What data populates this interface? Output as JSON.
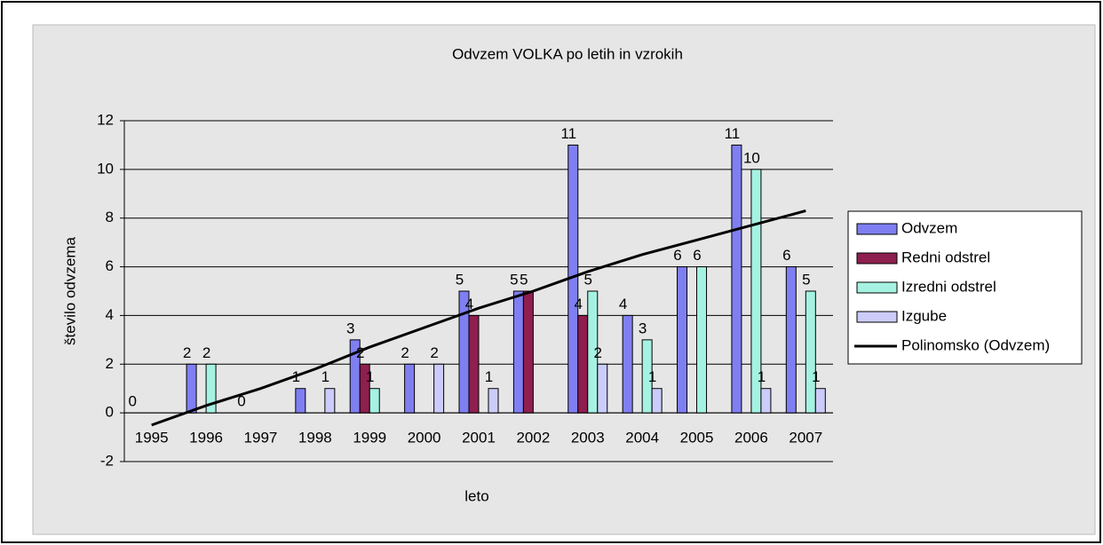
{
  "chart_data": {
    "type": "bar",
    "title": "Odvzem VOLKA po letih in vzrokih",
    "x_label": "leto",
    "y_label": "število odvzema",
    "categories": [
      "1995",
      "1996",
      "1997",
      "1998",
      "1999",
      "2000",
      "2001",
      "2002",
      "2003",
      "2004",
      "2005",
      "2006",
      "2007"
    ],
    "series": [
      {
        "name": "Odvzem",
        "color": "#7f7ff2",
        "values": [
          0,
          2,
          0,
          1,
          3,
          2,
          5,
          5,
          11,
          4,
          6,
          11,
          6
        ]
      },
      {
        "name": "Redni odstrel",
        "color": "#8e1f4f",
        "values": [
          null,
          null,
          null,
          null,
          2,
          null,
          4,
          5,
          4,
          null,
          null,
          null,
          null
        ]
      },
      {
        "name": "Izredni odstrel",
        "color": "#a6f2e2",
        "values": [
          null,
          2,
          null,
          null,
          1,
          null,
          null,
          null,
          5,
          3,
          6,
          10,
          5
        ]
      },
      {
        "name": "Izgube",
        "color": "#ccccfa",
        "values": [
          null,
          null,
          null,
          1,
          null,
          2,
          1,
          null,
          2,
          1,
          null,
          1,
          1
        ]
      },
      {
        "name": "Polinomsko (Odvzem)",
        "color": "#000000",
        "type": "line",
        "values": [
          -0.5,
          0.3,
          1.0,
          1.8,
          2.7,
          3.5,
          4.3,
          5.0,
          5.8,
          6.5,
          7.1,
          7.7,
          8.3
        ]
      }
    ],
    "ylim": [
      -2,
      12
    ],
    "yticks": [
      -2,
      0,
      2,
      4,
      6,
      8,
      10,
      12
    ],
    "grid": true,
    "legend": "right"
  }
}
